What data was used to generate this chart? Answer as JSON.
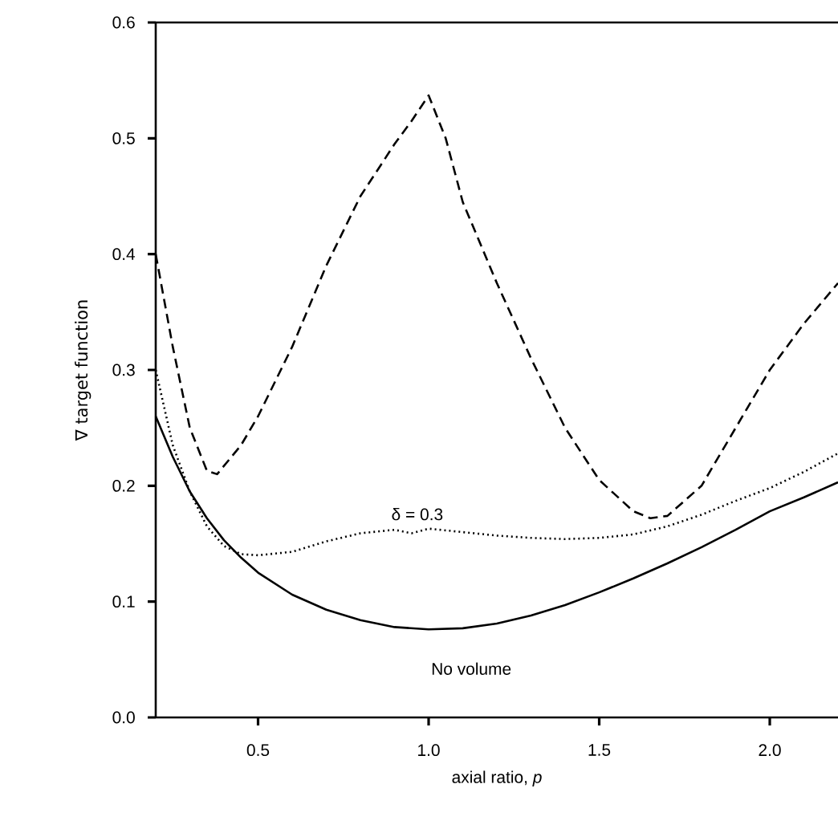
{
  "chart_data": {
    "type": "line",
    "xlabel": "axial ratio,   *p*",
    "ylabel": "∇ target function",
    "xlim": [
      0.2,
      2.2
    ],
    "ylim": [
      0,
      0.6
    ],
    "xticks": [
      0.5,
      {
        "value": 1,
        "label": "1.0"
      },
      1.5,
      {
        "value": 2,
        "label": "2.0"
      }
    ],
    "yticks": [
      {
        "value": 0,
        "label": "0.0"
      },
      0.1,
      0.2,
      0.3,
      0.4,
      0.5,
      0.6
    ],
    "legend": false,
    "grid": false,
    "series": [
      {
        "color": "#000000",
        "line_style": "dashed",
        "x": [
          0.2,
          0.25,
          0.3,
          0.35,
          0.38,
          0.45,
          0.5,
          0.6,
          0.7,
          0.8,
          0.9,
          0.95,
          1.0,
          1.05,
          1.1,
          1.2,
          1.3,
          1.4,
          1.5,
          1.6,
          1.65,
          1.7,
          1.8,
          1.9,
          2.0,
          2.1,
          2.2
        ],
        "values": [
          0.4,
          0.32,
          0.25,
          0.213,
          0.21,
          0.235,
          0.26,
          0.32,
          0.39,
          0.45,
          0.495,
          0.515,
          0.537,
          0.5,
          0.445,
          0.375,
          0.31,
          0.25,
          0.205,
          0.178,
          0.172,
          0.174,
          0.2,
          0.25,
          0.3,
          0.34,
          0.375
        ]
      },
      {
        "name": "δ = 0.3",
        "color": "#000000",
        "line_style": "dotted",
        "x": [
          0.2,
          0.25,
          0.3,
          0.35,
          0.4,
          0.45,
          0.5,
          0.6,
          0.7,
          0.8,
          0.9,
          0.95,
          1.0,
          1.1,
          1.2,
          1.3,
          1.4,
          1.5,
          1.6,
          1.7,
          1.8,
          1.9,
          2.0,
          2.1,
          2.2
        ],
        "values": [
          0.3,
          0.235,
          0.195,
          0.165,
          0.148,
          0.141,
          0.14,
          0.143,
          0.152,
          0.159,
          0.162,
          0.159,
          0.163,
          0.16,
          0.157,
          0.155,
          0.154,
          0.155,
          0.158,
          0.165,
          0.175,
          0.187,
          0.198,
          0.212,
          0.228
        ]
      },
      {
        "name": "No volume",
        "color": "#000000",
        "line_style": "solid",
        "x": [
          0.2,
          0.25,
          0.3,
          0.35,
          0.4,
          0.45,
          0.5,
          0.6,
          0.7,
          0.8,
          0.9,
          1.0,
          1.1,
          1.2,
          1.3,
          1.4,
          1.5,
          1.6,
          1.7,
          1.8,
          1.9,
          2.0,
          2.1,
          2.2
        ],
        "values": [
          0.26,
          0.225,
          0.195,
          0.172,
          0.153,
          0.138,
          0.125,
          0.106,
          0.093,
          0.084,
          0.078,
          0.076,
          0.077,
          0.081,
          0.088,
          0.097,
          0.108,
          0.12,
          0.133,
          0.147,
          0.162,
          0.178,
          0.19,
          0.203
        ]
      }
    ]
  }
}
